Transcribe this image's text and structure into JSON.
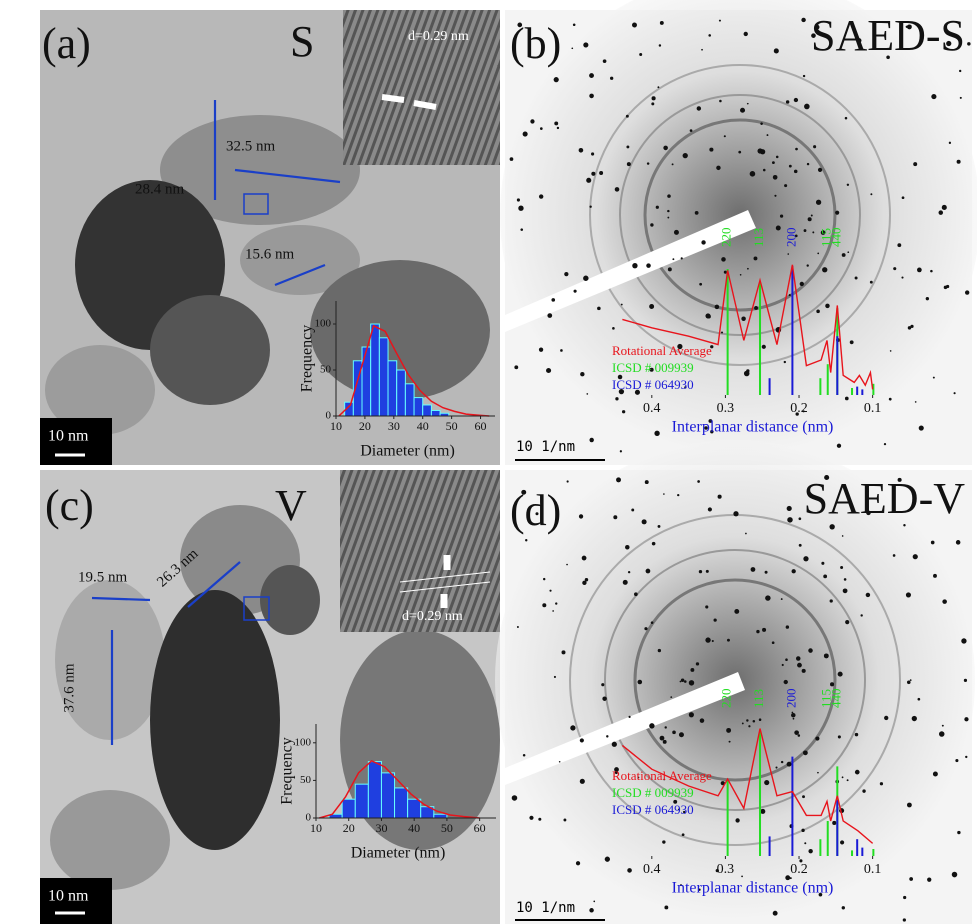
{
  "panels": [
    {
      "label": "(a)",
      "tag": "S",
      "scale_bar": "10 nm",
      "hrtem_d": "d=0.29 nm",
      "measurements": [
        "32.5 nm",
        "28.4 nm",
        "15.6 nm"
      ]
    },
    {
      "label": "(b)",
      "tag": "SAED-S",
      "scale_bar": "10 1/nm"
    },
    {
      "label": "(c)",
      "tag": "V",
      "scale_bar": "10 nm",
      "hrtem_d": "d=0.29 nm",
      "measurements": [
        "19.5 nm",
        "26.3 nm",
        "37.6 nm"
      ]
    },
    {
      "label": "(d)",
      "tag": "SAED-V",
      "scale_bar": "10 1/nm"
    }
  ],
  "chart_data": [
    {
      "type": "histogram",
      "xlabel": "Diameter (nm)",
      "ylabel": "Frequency",
      "bins": [
        13,
        16,
        19,
        22,
        25,
        28,
        31,
        34,
        37,
        40,
        43,
        46,
        49
      ],
      "values": [
        15,
        60,
        75,
        100,
        85,
        60,
        50,
        35,
        20,
        12,
        6,
        3
      ],
      "color": "#1f3fe0",
      "fit": {
        "color": "#e8141c",
        "x": [
          11,
          15,
          19,
          23,
          27,
          31,
          35,
          39,
          43,
          47,
          51,
          55,
          59,
          63
        ],
        "values": [
          0,
          12,
          55,
          98,
          92,
          68,
          45,
          28,
          16,
          9,
          5,
          2,
          1,
          0
        ]
      },
      "xlim": [
        10,
        65
      ],
      "ylim": [
        0,
        125
      ],
      "xticks": [
        10,
        20,
        30,
        40,
        50,
        60
      ],
      "yticks": [
        0,
        50,
        100
      ]
    },
    {
      "type": "line",
      "xlabel": "Interplanar distance (nm)",
      "x": [
        0.44,
        0.4,
        0.35,
        0.31,
        0.297,
        0.275,
        0.253,
        0.23,
        0.209,
        0.19,
        0.17,
        0.162,
        0.157,
        0.148,
        0.14,
        0.125,
        0.118,
        0.11,
        0.103,
        0.1
      ],
      "series": [
        {
          "name": "Rotational Average",
          "color": "#e8141c",
          "values": [
            54,
            48,
            42,
            36,
            89,
            39,
            82,
            36,
            93,
            21,
            25,
            39,
            16,
            64,
            14,
            9,
            14,
            7,
            16,
            4
          ]
        }
      ],
      "sticks": [
        {
          "name": "ICSD # 009939",
          "color": "#22dd22",
          "x": [
            0.297,
            0.253,
            0.171,
            0.161,
            0.148,
            0.128,
            0.099
          ],
          "values": [
            90,
            80,
            12,
            22,
            62,
            5,
            8
          ]
        },
        {
          "name": "ICSD # 064930",
          "color": "#1a1ad6",
          "x": [
            0.24,
            0.209,
            0.148,
            0.121,
            0.114
          ],
          "values": [
            12,
            92,
            42,
            6,
            4
          ]
        }
      ],
      "peak_labels": [
        {
          "label": "220",
          "x": 0.297,
          "color": "#22dd22"
        },
        {
          "label": "113",
          "x": 0.253,
          "color": "#22dd22"
        },
        {
          "label": "200",
          "x": 0.209,
          "color": "#1a1ad6"
        },
        {
          "label": "115",
          "x": 0.161,
          "color": "#22dd22"
        },
        {
          "label": "440",
          "x": 0.148,
          "color": "#22dd22"
        }
      ],
      "xlim": [
        0.45,
        0.09
      ],
      "ylim": [
        0,
        100
      ],
      "xticks": [
        0.4,
        0.3,
        0.2,
        0.1
      ]
    },
    {
      "type": "histogram",
      "xlabel": "Diameter (nm)",
      "ylabel": "Frequency",
      "bins": [
        14,
        18,
        22,
        26,
        30,
        34,
        38,
        42,
        46,
        50
      ],
      "values": [
        5,
        25,
        45,
        75,
        60,
        40,
        25,
        15,
        5
      ],
      "color": "#1f3fe0",
      "fit": {
        "color": "#e8141c",
        "x": [
          11,
          15,
          19,
          23,
          27,
          31,
          35,
          39,
          43,
          47,
          51,
          55,
          60
        ],
        "values": [
          0,
          5,
          28,
          60,
          76,
          68,
          50,
          32,
          18,
          9,
          4,
          2,
          0
        ]
      },
      "xlim": [
        10,
        65
      ],
      "ylim": [
        0,
        125
      ],
      "xticks": [
        10,
        20,
        30,
        40,
        50,
        60
      ],
      "yticks": [
        0,
        50,
        100
      ]
    },
    {
      "type": "line",
      "xlabel": "Interplanar distance (nm)",
      "x": [
        0.44,
        0.4,
        0.35,
        0.31,
        0.297,
        0.275,
        0.253,
        0.23,
        0.209,
        0.19,
        0.17,
        0.162,
        0.157,
        0.148,
        0.14,
        0.12,
        0.1
      ],
      "series": [
        {
          "name": "Rotational Average",
          "color": "#e8141c",
          "values": [
            79,
            62,
            50,
            43,
            55,
            34,
            91,
            43,
            46,
            29,
            29,
            39,
            25,
            43,
            25,
            18,
            9
          ]
        }
      ],
      "sticks": [
        {
          "name": "ICSD # 009939",
          "color": "#22dd22",
          "x": [
            0.297,
            0.253,
            0.171,
            0.161,
            0.148,
            0.128,
            0.099
          ],
          "values": [
            54,
            89,
            12,
            25,
            64,
            4,
            5
          ]
        },
        {
          "name": "ICSD # 064930",
          "color": "#1a1ad6",
          "x": [
            0.24,
            0.209,
            0.148,
            0.121,
            0.114
          ],
          "values": [
            14,
            71,
            40,
            12,
            6
          ]
        }
      ],
      "peak_labels": [
        {
          "label": "220",
          "x": 0.297,
          "color": "#22dd22"
        },
        {
          "label": "113",
          "x": 0.253,
          "color": "#22dd22"
        },
        {
          "label": "200",
          "x": 0.209,
          "color": "#1a1ad6"
        },
        {
          "label": "115",
          "x": 0.161,
          "color": "#22dd22"
        },
        {
          "label": "440",
          "x": 0.148,
          "color": "#22dd22"
        }
      ],
      "xlim": [
        0.45,
        0.09
      ],
      "ylim": [
        0,
        100
      ],
      "xticks": [
        0.4,
        0.3,
        0.2,
        0.1
      ]
    }
  ]
}
